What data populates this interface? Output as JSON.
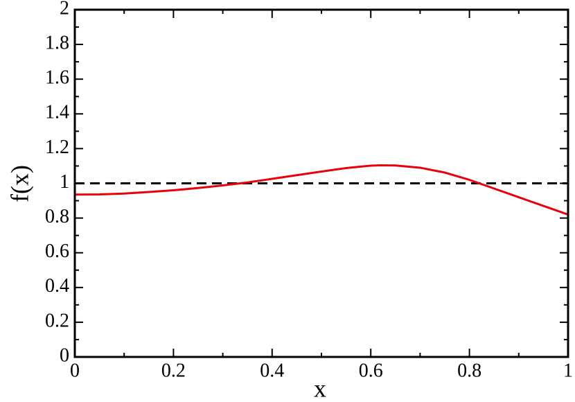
{
  "chart_data": {
    "type": "line",
    "xlabel": "x",
    "ylabel": "f(x)",
    "x": [
      0,
      0.05,
      0.1,
      0.15,
      0.2,
      0.25,
      0.3,
      0.35,
      0.4,
      0.45,
      0.5,
      0.55,
      0.6,
      0.62,
      0.65,
      0.7,
      0.75,
      0.8,
      0.85,
      0.9,
      0.95,
      1
    ],
    "series": [
      {
        "color": "#e8000b",
        "values": [
          0.935,
          0.936,
          0.941,
          0.95,
          0.96,
          0.973,
          0.988,
          1.005,
          1.026,
          1.047,
          1.068,
          1.088,
          1.102,
          1.104,
          1.103,
          1.09,
          1.062,
          1.02,
          0.97,
          0.92,
          0.87,
          0.82
        ]
      }
    ],
    "reference_line": {
      "y": 1,
      "color": "#000000",
      "dashed": true
    },
    "xlim": [
      0,
      1
    ],
    "ylim": [
      0,
      2
    ],
    "xticks": [
      0,
      0.2,
      0.4,
      0.6,
      0.8,
      1
    ],
    "yticks": [
      0,
      0.2,
      0.4,
      0.6,
      0.8,
      1,
      1.2,
      1.4,
      1.6,
      1.8,
      2
    ],
    "xminorticks": [
      0.1,
      0.3,
      0.5,
      0.7,
      0.9
    ],
    "yminorticks": [
      0.1,
      0.3,
      0.5,
      0.7,
      0.9,
      1.1,
      1.3,
      1.5,
      1.7,
      1.9
    ],
    "grid": false
  }
}
